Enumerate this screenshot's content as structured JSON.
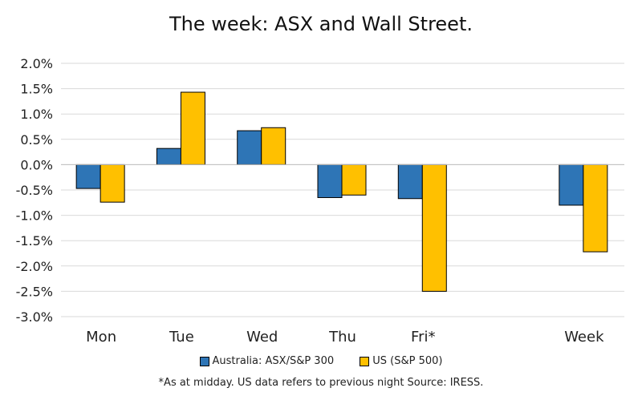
{
  "chart_data": {
    "type": "bar",
    "title": "The week:  ASX and Wall Street.",
    "categories": [
      "Mon",
      "Tue",
      "Wed",
      "Thu",
      "Fri*",
      "",
      "Week"
    ],
    "series": [
      {
        "name": "Australia: ASX/S&P 300",
        "color": "#2E75B6",
        "values": [
          -0.47,
          0.32,
          0.67,
          -0.65,
          -0.67,
          null,
          -0.8
        ]
      },
      {
        "name": "US (S&P 500)",
        "color": "#FFC000",
        "values": [
          -0.74,
          1.43,
          0.73,
          -0.6,
          -2.5,
          null,
          -1.72
        ]
      }
    ],
    "ylim": [
      -3.0,
      2.0
    ],
    "yticks": [
      "-3.0%",
      "-2.5%",
      "-2.0%",
      "-1.5%",
      "-1.0%",
      "-0.5%",
      "0.0%",
      "0.5%",
      "1.0%",
      "1.5%",
      "2.0%"
    ],
    "xlabel": "",
    "ylabel": "",
    "grid": true,
    "legend_position": "bottom",
    "note": "*As at midday. US data refers to previous night  Source:  IRESS."
  }
}
